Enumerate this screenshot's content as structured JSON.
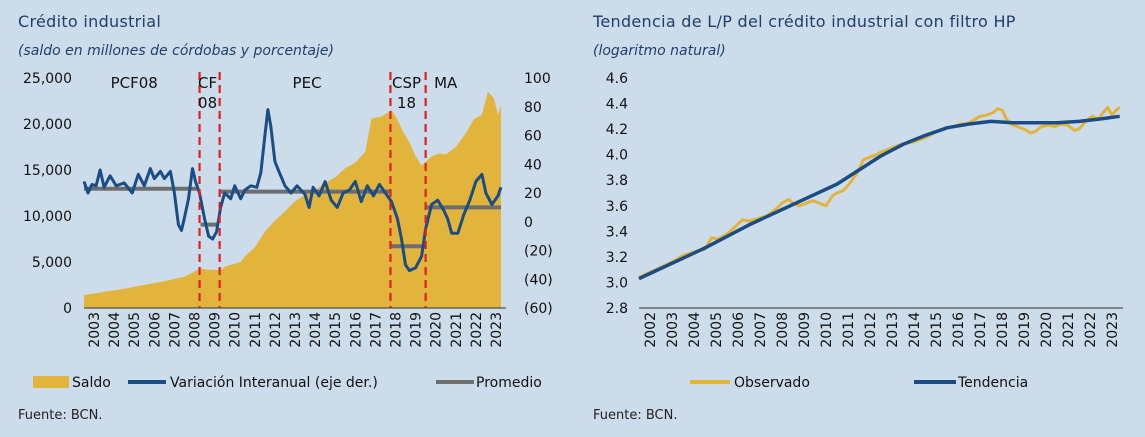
{
  "chart_data": [
    {
      "type": "bar",
      "title": "Crédito industrial",
      "subtitle": "(saldo en millones de córdobas y porcentaje)",
      "source": "Fuente: BCN.",
      "ylim": [
        0,
        25000
      ],
      "y2lim": [
        -60,
        100
      ],
      "y_ticks": [
        0,
        5000,
        10000,
        15000,
        20000,
        25000
      ],
      "y_tick_labels": [
        "0",
        "5,000",
        "10,000",
        "15,000",
        "20,000",
        "25,000"
      ],
      "y2_ticks": [
        -60,
        -40,
        -20,
        0,
        20,
        40,
        60,
        80,
        100
      ],
      "y2_tick_labels": [
        "(60)",
        "(40)",
        "(20)",
        "0",
        "20",
        "40",
        "60",
        "80",
        "100"
      ],
      "x_tick_labels": [
        "2003",
        "2004",
        "2005",
        "2006",
        "2007",
        "2008",
        "2009",
        "2010",
        "2011",
        "2012",
        "2013",
        "2014",
        "2015",
        "2016",
        "2017",
        "2018",
        "2019",
        "2020",
        "2021",
        "2022",
        "2023"
      ],
      "x_range": [
        2003,
        2024
      ],
      "period_lines": [
        2008.75,
        2009.75,
        2018.25,
        2020.0
      ],
      "period_labels": [
        {
          "lines": [
            "PCF08"
          ],
          "x": 2005.5
        },
        {
          "lines": [
            "CF",
            "08"
          ],
          "x": 2009.15
        },
        {
          "lines": [
            "PEC"
          ],
          "x": 2014.1
        },
        {
          "lines": [
            "CSP",
            "18"
          ],
          "x": 2019.05
        },
        {
          "lines": [
            "MA"
          ],
          "x": 2021.0
        }
      ],
      "legend": [
        "Saldo",
        "Variación Interanual (eje der.)",
        "Promedio"
      ],
      "colors": {
        "saldo": "#e3b43c",
        "variacion": "#1a4d84",
        "promedio": "#6e6e6e",
        "period_line": "#e02020"
      },
      "series": [
        {
          "name": "Saldo",
          "axis": "left",
          "points": [
            [
              2003.0,
              1400
            ],
            [
              2004.0,
              1750
            ],
            [
              2005.0,
              2100
            ],
            [
              2006.0,
              2500
            ],
            [
              2007.0,
              2900
            ],
            [
              2008.0,
              3400
            ],
            [
              2008.8,
              4300
            ],
            [
              2009.0,
              4200
            ],
            [
              2009.8,
              4100
            ],
            [
              2010.0,
              4500
            ],
            [
              2010.8,
              5000
            ],
            [
              2011.0,
              5600
            ],
            [
              2011.5,
              6600
            ],
            [
              2012.0,
              8300
            ],
            [
              2012.5,
              9500
            ],
            [
              2013.0,
              10500
            ],
            [
              2013.5,
              11600
            ],
            [
              2014.0,
              12300
            ],
            [
              2014.5,
              12800
            ],
            [
              2015.0,
              13600
            ],
            [
              2015.5,
              14200
            ],
            [
              2016.0,
              15200
            ],
            [
              2016.5,
              15800
            ],
            [
              2017.0,
              17000
            ],
            [
              2017.3,
              20600
            ],
            [
              2017.8,
              20800
            ],
            [
              2018.3,
              21500
            ],
            [
              2018.5,
              20900
            ],
            [
              2018.8,
              19500
            ],
            [
              2019.2,
              18000
            ],
            [
              2019.5,
              16500
            ],
            [
              2019.8,
              15500
            ],
            [
              2020.0,
              15900
            ],
            [
              2020.3,
              16500
            ],
            [
              2020.7,
              16800
            ],
            [
              2021.0,
              16700
            ],
            [
              2021.5,
              17500
            ],
            [
              2022.0,
              19000
            ],
            [
              2022.4,
              20500
            ],
            [
              2022.8,
              21000
            ],
            [
              2023.1,
              23500
            ],
            [
              2023.4,
              22800
            ],
            [
              2023.6,
              21000
            ],
            [
              2023.75,
              22000
            ]
          ]
        },
        {
          "name": "Variación Interanual (eje der.)",
          "axis": "right",
          "points": [
            [
              2003.0,
              28
            ],
            [
              2003.2,
              20
            ],
            [
              2003.4,
              26
            ],
            [
              2003.6,
              25
            ],
            [
              2003.8,
              36
            ],
            [
              2004.0,
              24
            ],
            [
              2004.3,
              32
            ],
            [
              2004.6,
              25
            ],
            [
              2005.0,
              27
            ],
            [
              2005.4,
              20
            ],
            [
              2005.7,
              33
            ],
            [
              2006.0,
              25
            ],
            [
              2006.3,
              37
            ],
            [
              2006.5,
              30
            ],
            [
              2006.8,
              35
            ],
            [
              2007.0,
              30
            ],
            [
              2007.3,
              35
            ],
            [
              2007.5,
              20
            ],
            [
              2007.7,
              -2
            ],
            [
              2007.85,
              -6
            ],
            [
              2008.0,
              3
            ],
            [
              2008.2,
              16
            ],
            [
              2008.4,
              37
            ],
            [
              2008.55,
              28
            ],
            [
              2008.75,
              20
            ],
            [
              2009.0,
              2
            ],
            [
              2009.2,
              -10
            ],
            [
              2009.4,
              -12
            ],
            [
              2009.6,
              -7
            ],
            [
              2009.8,
              10
            ],
            [
              2010.0,
              20
            ],
            [
              2010.3,
              16
            ],
            [
              2010.5,
              25
            ],
            [
              2010.8,
              16
            ],
            [
              2011.0,
              22
            ],
            [
              2011.3,
              25
            ],
            [
              2011.6,
              24
            ],
            [
              2011.8,
              34
            ],
            [
              2012.0,
              60
            ],
            [
              2012.15,
              78
            ],
            [
              2012.3,
              66
            ],
            [
              2012.5,
              42
            ],
            [
              2012.7,
              35
            ],
            [
              2013.0,
              25
            ],
            [
              2013.3,
              20
            ],
            [
              2013.6,
              25
            ],
            [
              2014.0,
              19
            ],
            [
              2014.2,
              10
            ],
            [
              2014.4,
              24
            ],
            [
              2014.7,
              18
            ],
            [
              2015.0,
              28
            ],
            [
              2015.3,
              15
            ],
            [
              2015.6,
              10
            ],
            [
              2015.9,
              20
            ],
            [
              2016.2,
              22
            ],
            [
              2016.5,
              28
            ],
            [
              2016.8,
              14
            ],
            [
              2017.1,
              25
            ],
            [
              2017.4,
              18
            ],
            [
              2017.7,
              26
            ],
            [
              2018.0,
              20
            ],
            [
              2018.3,
              14
            ],
            [
              2018.6,
              2
            ],
            [
              2018.8,
              -12
            ],
            [
              2019.0,
              -30
            ],
            [
              2019.2,
              -34
            ],
            [
              2019.5,
              -32
            ],
            [
              2019.8,
              -24
            ],
            [
              2020.0,
              -5
            ],
            [
              2020.3,
              12
            ],
            [
              2020.6,
              15
            ],
            [
              2020.9,
              8
            ],
            [
              2021.1,
              2
            ],
            [
              2021.3,
              -8
            ],
            [
              2021.6,
              -8
            ],
            [
              2021.9,
              5
            ],
            [
              2022.2,
              15
            ],
            [
              2022.5,
              28
            ],
            [
              2022.8,
              33
            ],
            [
              2023.0,
              20
            ],
            [
              2023.3,
              12
            ],
            [
              2023.6,
              18
            ],
            [
              2023.75,
              24
            ]
          ]
        },
        {
          "name": "Promedio",
          "axis": "right",
          "segments": [
            {
              "from": 2003.0,
              "to": 2008.7,
              "value": 23
            },
            {
              "from": 2008.8,
              "to": 2009.7,
              "value": -2
            },
            {
              "from": 2009.8,
              "to": 2018.2,
              "value": 21
            },
            {
              "from": 2018.3,
              "to": 2019.95,
              "value": -17
            },
            {
              "from": 2020.05,
              "to": 2023.75,
              "value": 10
            }
          ]
        }
      ]
    },
    {
      "type": "line",
      "title": "Tendencia de L/P del crédito industrial con filtro HP",
      "subtitle": "(logaritmo natural)",
      "source": "Fuente: BCN.",
      "ylim": [
        2.8,
        4.6
      ],
      "y_ticks": [
        2.8,
        3.0,
        3.2,
        3.4,
        3.6,
        3.8,
        4.0,
        4.2,
        4.4,
        4.6
      ],
      "y_tick_labels": [
        "2.8",
        "3.0",
        "3.2",
        "3.4",
        "3.6",
        "3.8",
        "4.0",
        "4.2",
        "4.4",
        "4.6"
      ],
      "x_tick_labels": [
        "2002",
        "2003",
        "2004",
        "2005",
        "2006",
        "2007",
        "2008",
        "2009",
        "2010",
        "2011",
        "2012",
        "2013",
        "2014",
        "2015",
        "2016",
        "2017",
        "2018",
        "2019",
        "2020",
        "2021",
        "2022",
        "2023"
      ],
      "x_range": [
        2002,
        2024
      ],
      "legend": [
        "Observado",
        "Tendencia"
      ],
      "colors": {
        "observado": "#e3b43c",
        "tendencia": "#1a4d84"
      },
      "series": [
        {
          "name": "Observado",
          "points": [
            [
              2002.0,
              3.04
            ],
            [
              2002.5,
              3.08
            ],
            [
              2003.0,
              3.12
            ],
            [
              2003.5,
              3.16
            ],
            [
              2004.0,
              3.21
            ],
            [
              2004.5,
              3.24
            ],
            [
              2005.0,
              3.26
            ],
            [
              2005.3,
              3.35
            ],
            [
              2005.6,
              3.34
            ],
            [
              2006.0,
              3.38
            ],
            [
              2006.4,
              3.44
            ],
            [
              2006.7,
              3.49
            ],
            [
              2007.0,
              3.48
            ],
            [
              2007.4,
              3.5
            ],
            [
              2007.8,
              3.52
            ],
            [
              2008.2,
              3.57
            ],
            [
              2008.5,
              3.62
            ],
            [
              2008.8,
              3.65
            ],
            [
              2009.0,
              3.62
            ],
            [
              2009.3,
              3.6
            ],
            [
              2009.6,
              3.62
            ],
            [
              2009.9,
              3.64
            ],
            [
              2010.2,
              3.62
            ],
            [
              2010.5,
              3.6
            ],
            [
              2010.8,
              3.68
            ],
            [
              2011.0,
              3.7
            ],
            [
              2011.3,
              3.72
            ],
            [
              2011.6,
              3.78
            ],
            [
              2011.9,
              3.85
            ],
            [
              2012.2,
              3.96
            ],
            [
              2012.5,
              3.98
            ],
            [
              2012.8,
              4.0
            ],
            [
              2013.0,
              4.02
            ],
            [
              2013.3,
              4.04
            ],
            [
              2013.6,
              4.06
            ],
            [
              2013.9,
              4.08
            ],
            [
              2014.2,
              4.09
            ],
            [
              2014.5,
              4.1
            ],
            [
              2014.8,
              4.12
            ],
            [
              2015.1,
              4.14
            ],
            [
              2015.4,
              4.17
            ],
            [
              2015.7,
              4.19
            ],
            [
              2016.0,
              4.21
            ],
            [
              2016.3,
              4.22
            ],
            [
              2016.6,
              4.24
            ],
            [
              2016.9,
              4.24
            ],
            [
              2017.2,
              4.27
            ],
            [
              2017.5,
              4.3
            ],
            [
              2017.8,
              4.31
            ],
            [
              2018.1,
              4.33
            ],
            [
              2018.3,
              4.36
            ],
            [
              2018.5,
              4.35
            ],
            [
              2018.7,
              4.28
            ],
            [
              2018.9,
              4.24
            ],
            [
              2019.2,
              4.22
            ],
            [
              2019.5,
              4.2
            ],
            [
              2019.8,
              4.17
            ],
            [
              2020.0,
              4.18
            ],
            [
              2020.3,
              4.22
            ],
            [
              2020.6,
              4.23
            ],
            [
              2020.9,
              4.22
            ],
            [
              2021.2,
              4.24
            ],
            [
              2021.5,
              4.23
            ],
            [
              2021.8,
              4.19
            ],
            [
              2022.0,
              4.2
            ],
            [
              2022.3,
              4.26
            ],
            [
              2022.6,
              4.3
            ],
            [
              2022.9,
              4.28
            ],
            [
              2023.1,
              4.33
            ],
            [
              2023.3,
              4.37
            ],
            [
              2023.5,
              4.31
            ],
            [
              2023.7,
              4.35
            ],
            [
              2023.85,
              4.37
            ]
          ]
        },
        {
          "name": "Tendencia",
          "points": [
            [
              2002.0,
              3.03
            ],
            [
              2003.0,
              3.11
            ],
            [
              2004.0,
              3.19
            ],
            [
              2005.0,
              3.27
            ],
            [
              2006.0,
              3.36
            ],
            [
              2007.0,
              3.45
            ],
            [
              2008.0,
              3.53
            ],
            [
              2009.0,
              3.61
            ],
            [
              2010.0,
              3.69
            ],
            [
              2011.0,
              3.77
            ],
            [
              2012.0,
              3.88
            ],
            [
              2013.0,
              3.99
            ],
            [
              2014.0,
              4.08
            ],
            [
              2015.0,
              4.15
            ],
            [
              2016.0,
              4.21
            ],
            [
              2017.0,
              4.24
            ],
            [
              2018.0,
              4.26
            ],
            [
              2019.0,
              4.25
            ],
            [
              2020.0,
              4.25
            ],
            [
              2021.0,
              4.25
            ],
            [
              2022.0,
              4.26
            ],
            [
              2023.0,
              4.28
            ],
            [
              2023.85,
              4.3
            ]
          ]
        }
      ]
    }
  ]
}
